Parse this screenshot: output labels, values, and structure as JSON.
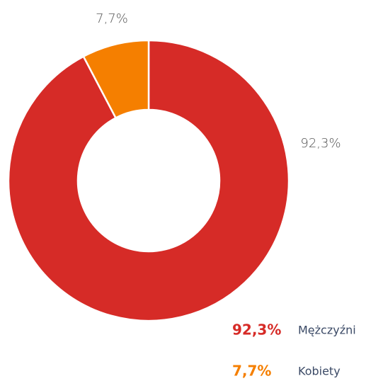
{
  "chart_data": {
    "type": "donut",
    "categories": [
      "Mężczyźni",
      "Kobiety"
    ],
    "values": [
      92.3,
      7.7
    ],
    "value_labels": [
      "92,3%",
      "7,7%"
    ],
    "colors": [
      "#d62b27",
      "#f57f00"
    ],
    "legend": "bottom-right"
  }
}
